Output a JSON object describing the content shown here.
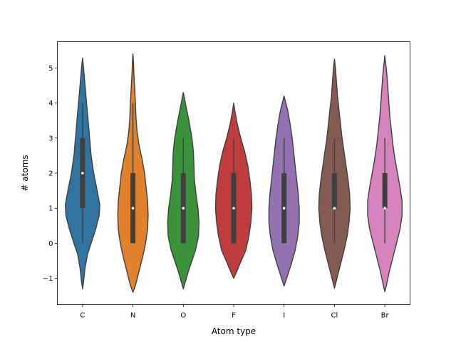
{
  "chart_data": {
    "type": "violin",
    "xlabel": "Atom type",
    "ylabel": "# atoms",
    "categories": [
      "C",
      "N",
      "O",
      "F",
      "I",
      "Cl",
      "Br"
    ],
    "colors": [
      "#3274a1",
      "#e1812c",
      "#3a923a",
      "#c03d3e",
      "#9372b2",
      "#845b53",
      "#d684bd"
    ],
    "ylim": [
      -1.75,
      5.75
    ],
    "yticks": [
      -1,
      0,
      1,
      2,
      3,
      4,
      5
    ],
    "ytick_labels": [
      "−1",
      "0",
      "1",
      "2",
      "3",
      "4",
      "5"
    ],
    "grid": false,
    "violins": [
      {
        "category": "C",
        "median": 2,
        "q1": 1,
        "q3": 3,
        "whisker_low": 0,
        "whisker_high": 4,
        "profile": [
          [
            -1.3,
            0
          ],
          [
            -1.1,
            0.02
          ],
          [
            -0.7,
            0.05
          ],
          [
            -0.3,
            0.1
          ],
          [
            0,
            0.17
          ],
          [
            0.4,
            0.26
          ],
          [
            0.8,
            0.33
          ],
          [
            1.1,
            0.34
          ],
          [
            1.5,
            0.29
          ],
          [
            2,
            0.22
          ],
          [
            2.5,
            0.17
          ],
          [
            3,
            0.14
          ],
          [
            3.5,
            0.11
          ],
          [
            4,
            0.08
          ],
          [
            4.5,
            0.05
          ],
          [
            5,
            0.02
          ],
          [
            5.28,
            0
          ]
        ]
      },
      {
        "category": "N",
        "median": 1,
        "q1": 0,
        "q3": 2,
        "whisker_low": 0,
        "whisker_high": 4,
        "profile": [
          [
            -1.4,
            0
          ],
          [
            -1.2,
            0.05
          ],
          [
            -0.8,
            0.12
          ],
          [
            -0.4,
            0.19
          ],
          [
            0,
            0.25
          ],
          [
            0.4,
            0.29
          ],
          [
            0.8,
            0.3
          ],
          [
            1.2,
            0.29
          ],
          [
            1.6,
            0.26
          ],
          [
            2,
            0.23
          ],
          [
            2.4,
            0.18
          ],
          [
            2.8,
            0.12
          ],
          [
            3.2,
            0.08
          ],
          [
            3.6,
            0.06
          ],
          [
            4,
            0.05
          ],
          [
            4.4,
            0.035
          ],
          [
            4.8,
            0.02
          ],
          [
            5.2,
            0.01
          ],
          [
            5.4,
            0
          ]
        ]
      },
      {
        "category": "O",
        "median": 1,
        "q1": 0,
        "q3": 2,
        "whisker_low": 0,
        "whisker_high": 3,
        "profile": [
          [
            -1.3,
            0
          ],
          [
            -1.1,
            0.04
          ],
          [
            -0.8,
            0.1
          ],
          [
            -0.5,
            0.17
          ],
          [
            -0.2,
            0.24
          ],
          [
            0.2,
            0.3
          ],
          [
            0.6,
            0.31
          ],
          [
            1,
            0.29
          ],
          [
            1.4,
            0.25
          ],
          [
            1.8,
            0.22
          ],
          [
            2.2,
            0.21
          ],
          [
            2.6,
            0.2
          ],
          [
            3,
            0.17
          ],
          [
            3.5,
            0.11
          ],
          [
            4,
            0.04
          ],
          [
            4.3,
            0
          ]
        ]
      },
      {
        "category": "F",
        "median": 1,
        "q1": 0,
        "q3": 2,
        "whisker_low": 0,
        "whisker_high": 3,
        "profile": [
          [
            -1,
            0
          ],
          [
            -0.8,
            0.06
          ],
          [
            -0.5,
            0.15
          ],
          [
            -0.2,
            0.24
          ],
          [
            0.2,
            0.3
          ],
          [
            0.6,
            0.34
          ],
          [
            1,
            0.36
          ],
          [
            1.4,
            0.35
          ],
          [
            1.8,
            0.32
          ],
          [
            2.2,
            0.28
          ],
          [
            2.6,
            0.22
          ],
          [
            3,
            0.14
          ],
          [
            3.4,
            0.07
          ],
          [
            3.8,
            0.02
          ],
          [
            4,
            0
          ]
        ]
      },
      {
        "category": "I",
        "median": 1,
        "q1": 0,
        "q3": 2,
        "whisker_low": 0,
        "whisker_high": 3,
        "profile": [
          [
            -1.22,
            0
          ],
          [
            -1,
            0.05
          ],
          [
            -0.6,
            0.14
          ],
          [
            -0.2,
            0.22
          ],
          [
            0.2,
            0.27
          ],
          [
            0.6,
            0.3
          ],
          [
            1,
            0.3
          ],
          [
            1.4,
            0.28
          ],
          [
            1.8,
            0.25
          ],
          [
            2.2,
            0.22
          ],
          [
            2.6,
            0.19
          ],
          [
            3,
            0.16
          ],
          [
            3.4,
            0.12
          ],
          [
            3.8,
            0.07
          ],
          [
            4.2,
            0
          ]
        ]
      },
      {
        "category": "Cl",
        "median": 1,
        "q1": 1,
        "q3": 2,
        "whisker_low": 0,
        "whisker_high": 3,
        "profile": [
          [
            -1.28,
            0
          ],
          [
            -1,
            0.05
          ],
          [
            -0.6,
            0.12
          ],
          [
            -0.2,
            0.19
          ],
          [
            0.2,
            0.25
          ],
          [
            0.6,
            0.29
          ],
          [
            1,
            0.31
          ],
          [
            1.4,
            0.3
          ],
          [
            1.8,
            0.27
          ],
          [
            2.2,
            0.23
          ],
          [
            2.6,
            0.19
          ],
          [
            3,
            0.15
          ],
          [
            3.4,
            0.12
          ],
          [
            3.8,
            0.09
          ],
          [
            4.2,
            0.06
          ],
          [
            4.6,
            0.04
          ],
          [
            5,
            0.02
          ],
          [
            5.25,
            0
          ]
        ]
      },
      {
        "category": "Br",
        "median": 1,
        "q1": 1,
        "q3": 2,
        "whisker_low": 0,
        "whisker_high": 3,
        "profile": [
          [
            -1.38,
            0
          ],
          [
            -1.2,
            0.03
          ],
          [
            -0.8,
            0.09
          ],
          [
            -0.4,
            0.16
          ],
          [
            0,
            0.23
          ],
          [
            0.4,
            0.3
          ],
          [
            0.8,
            0.34
          ],
          [
            1.2,
            0.34
          ],
          [
            1.6,
            0.3
          ],
          [
            2,
            0.25
          ],
          [
            2.4,
            0.2
          ],
          [
            2.8,
            0.16
          ],
          [
            3.2,
            0.13
          ],
          [
            3.6,
            0.1
          ],
          [
            4,
            0.08
          ],
          [
            4.4,
            0.06
          ],
          [
            4.8,
            0.04
          ],
          [
            5.2,
            0.01
          ],
          [
            5.35,
            0
          ]
        ]
      }
    ]
  }
}
